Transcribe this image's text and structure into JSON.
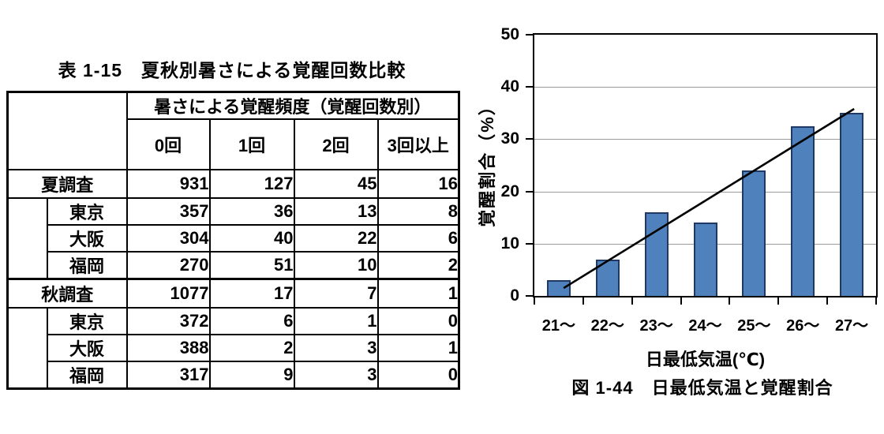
{
  "table": {
    "title": "表 1-15　夏秋別暑さによる覚醒回数比較",
    "header": {
      "group_label": "暑さによる覚醒頻度（覚醒回数別）",
      "columns": [
        "0回",
        "1回",
        "2回",
        "3回以上"
      ]
    },
    "rows": [
      {
        "label": "夏調査",
        "type": "group",
        "values": [
          931,
          127,
          45,
          16
        ]
      },
      {
        "label": "東京",
        "type": "city",
        "values": [
          357,
          36,
          13,
          8
        ]
      },
      {
        "label": "大阪",
        "type": "city",
        "values": [
          304,
          40,
          22,
          6
        ]
      },
      {
        "label": "福岡",
        "type": "city",
        "values": [
          270,
          51,
          10,
          2
        ]
      },
      {
        "label": "秋調査",
        "type": "group",
        "values": [
          1077,
          17,
          7,
          1
        ]
      },
      {
        "label": "東京",
        "type": "city",
        "values": [
          372,
          6,
          1,
          0
        ]
      },
      {
        "label": "大阪",
        "type": "city",
        "values": [
          388,
          2,
          3,
          1
        ]
      },
      {
        "label": "福岡",
        "type": "city",
        "values": [
          317,
          9,
          3,
          0
        ]
      }
    ]
  },
  "chart_data": {
    "type": "bar",
    "caption": "図 1-44　日最低気温と覚醒割合",
    "categories": [
      "21～",
      "22～",
      "23～",
      "24～",
      "25～",
      "26～",
      "27～"
    ],
    "values": [
      3,
      7,
      16,
      14,
      24,
      32.5,
      35
    ],
    "xlabel": "日最低気温(℃)",
    "ylabel": "覚醒割合（%）",
    "ylim": [
      0,
      50
    ],
    "yticks": [
      0,
      10,
      20,
      30,
      40,
      50
    ],
    "grid": true,
    "legend_position": "none",
    "trendline": {
      "x1_slot": 0.6,
      "y1_value": 1.5,
      "x2_slot": 6.55,
      "y2_value": 35.8
    },
    "colors": {
      "bar_fill": "#4F81BD",
      "bar_border": "#1F3864",
      "gridline": "#9A9A9A",
      "axis": "#000000",
      "trend": "#000000"
    }
  }
}
